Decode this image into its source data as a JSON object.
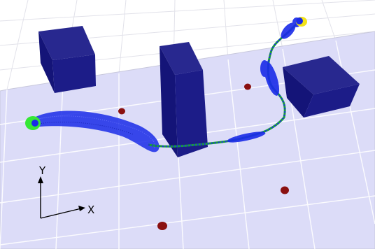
{
  "axes": {
    "y_label": "Y",
    "x_label": "X"
  },
  "colors": {
    "background": "#ffffff",
    "floor": "#dcdcf8",
    "grid": "#c8c8dc",
    "obstacle_top": "#28288f",
    "obstacle_side": "#141478",
    "obstacle_front": "#1c1c88",
    "particles": "#1a2be8",
    "path": "#1a9e3a",
    "start_marker": "#35e835",
    "goal_marker": "#f2e21a",
    "hazard_dot": "#8a1010"
  },
  "icons": {
    "start": "start-marker-icon",
    "goal": "goal-marker-icon"
  }
}
